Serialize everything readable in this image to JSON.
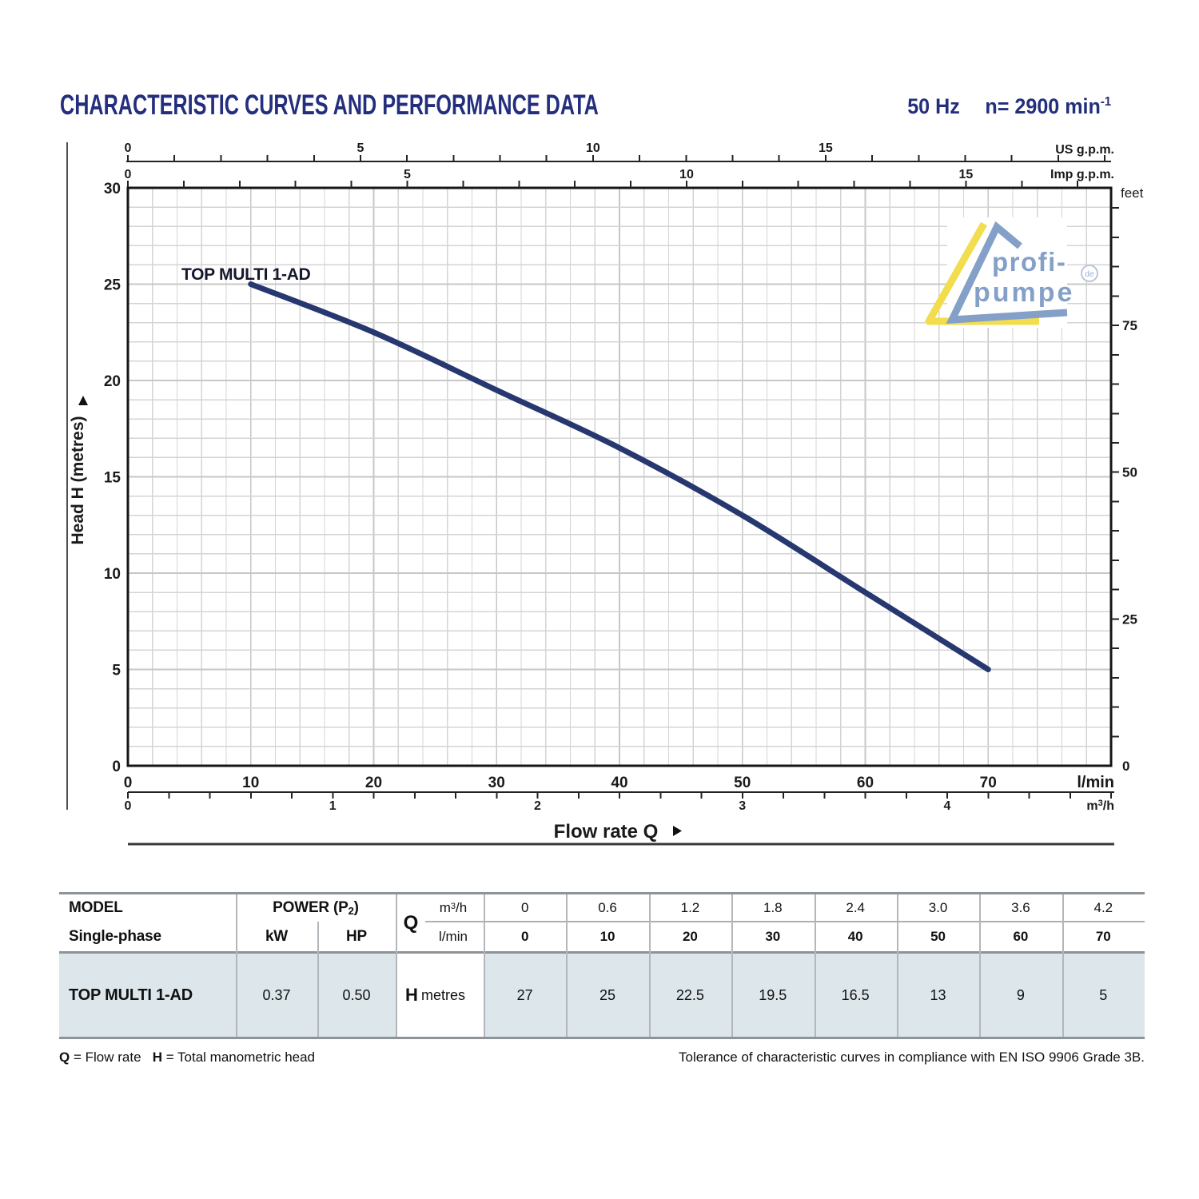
{
  "header": {
    "title": "CHARACTERISTIC CURVES AND PERFORMANCE DATA",
    "frequency": "50 Hz",
    "speed": "n= 2900 min",
    "speed_exp": "-1"
  },
  "chart_data": {
    "type": "line",
    "series": [
      {
        "name": "TOP MULTI 1-AD",
        "points_lmin_m": [
          [
            10,
            25
          ],
          [
            20,
            22.5
          ],
          [
            30,
            19.5
          ],
          [
            40,
            16.5
          ],
          [
            50,
            13
          ],
          [
            60,
            9
          ],
          [
            70,
            5
          ]
        ]
      }
    ],
    "xlim_lmin": [
      0,
      80
    ],
    "ylim_m": [
      0,
      30
    ],
    "grid_minor_step_lmin": 2,
    "grid_minor_step_m": 1,
    "x_axis": {
      "unit": "l/min",
      "ticks": [
        0,
        10,
        20,
        30,
        40,
        50,
        60,
        70
      ]
    },
    "x_axis2": {
      "unit_pre": "m",
      "unit_sup": "3",
      "unit_post": "/h",
      "ticks": [
        0,
        1,
        2,
        3,
        4
      ],
      "minor_step": 0.2
    },
    "y_axis": {
      "label": "Head H  (metres)",
      "ticks": [
        30,
        25,
        20,
        15,
        10,
        5,
        0
      ]
    },
    "right_axis": {
      "unit": "feet",
      "ticks": [
        75,
        50,
        25,
        0
      ],
      "minor_step_ft": 5
    },
    "top_axis_us": {
      "unit": "US g.p.m.",
      "ticks": [
        0,
        5,
        10,
        15
      ],
      "minor_step": 1
    },
    "top_axis_imp": {
      "unit": "Imp g.p.m.",
      "ticks": [
        0,
        5,
        10,
        15
      ],
      "minor_step": 1
    },
    "flow_label": "Flow rate  Q",
    "conversions_lmin": {
      "us_gpm": 3.785,
      "imp_gpm": 4.546,
      "m3h": 16.6667
    },
    "m_per_foot": 0.3048,
    "curve_color": "#27376f",
    "label_color": "#15172e"
  },
  "logo": {
    "line1": "profi-",
    "line2": "pumpe",
    "badge": "de",
    "blue": "#84a0c8",
    "yellow": "#f1dd4d"
  },
  "table": {
    "col1_top": "MODEL",
    "col1_bottom": "Single-phase",
    "power_pre": "POWER (P",
    "power_sub": "2",
    "power_post": ")",
    "kw": "kW",
    "hp": "HP",
    "q": "Q",
    "m3h_pre": "m",
    "m3h_sup": "3",
    "m3h_post": "/h",
    "lmin": "l/min",
    "m3h_values": [
      "0",
      "0.6",
      "1.2",
      "1.8",
      "2.4",
      "3.0",
      "3.6",
      "4.2"
    ],
    "lmin_values": [
      "0",
      "10",
      "20",
      "30",
      "40",
      "50",
      "60",
      "70"
    ],
    "row": {
      "model": "TOP MULTI 1-AD",
      "kw": "0.37",
      "hp": "0.50",
      "h": "H",
      "h_unit": "metres",
      "h_values": [
        "27",
        "25",
        "22.5",
        "19.5",
        "16.5",
        "13",
        "9",
        "5"
      ]
    }
  },
  "footer": {
    "q": "Q",
    "q_text": " = Flow rate   ",
    "h": "H",
    "h_text": " = Total manometric head",
    "right": "Tolerance of characteristic curves in compliance with EN ISO 9906 Grade 3B."
  }
}
